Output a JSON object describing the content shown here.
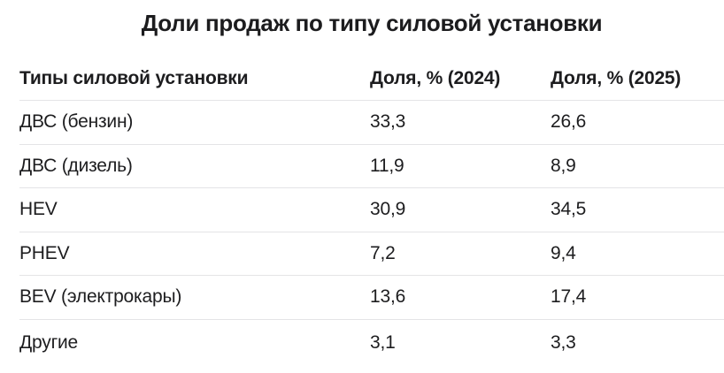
{
  "title": "Доли продаж по типу силовой установки",
  "table": {
    "columns": [
      "Типы силовой установки",
      "Доля, % (2024)",
      "Доля, % (2025)"
    ],
    "rows": [
      {
        "type": "ДВС (бензин)",
        "y2024": "33,3",
        "y2025": "26,6"
      },
      {
        "type": "ДВС (дизель)",
        "y2024": "11,9",
        "y2025": "8,9"
      },
      {
        "type": "HEV",
        "y2024": "30,9",
        "y2025": "34,5"
      },
      {
        "type": "PHEV",
        "y2024": "7,2",
        "y2025": "9,4"
      },
      {
        "type": "BEV (электрокары)",
        "y2024": "13,6",
        "y2025": "17,4"
      },
      {
        "type": "Другие",
        "y2024": "3,1",
        "y2025": "3,3"
      }
    ]
  },
  "colors": {
    "background": "#ffffff",
    "text": "#1d1d1f",
    "title": "#1c1c1e",
    "divider": "#e4e4e6"
  },
  "chart_data": {
    "type": "table",
    "title": "Доли продаж по типу силовой установки",
    "columns": [
      "Типы силовой установки",
      "Доля, % (2024)",
      "Доля, % (2025)"
    ],
    "categories": [
      "ДВС (бензин)",
      "ДВС (дизель)",
      "HEV",
      "PHEV",
      "BEV (электрокары)",
      "Другие"
    ],
    "series": [
      {
        "name": "Доля, % (2024)",
        "values": [
          33.3,
          11.9,
          30.9,
          7.2,
          13.6,
          3.1
        ]
      },
      {
        "name": "Доля, % (2025)",
        "values": [
          26.6,
          8.9,
          34.5,
          9.4,
          17.4,
          3.3
        ]
      }
    ],
    "value_decimal_separator": ",",
    "grid": "horizontal-dividers",
    "legend_position": "none"
  }
}
